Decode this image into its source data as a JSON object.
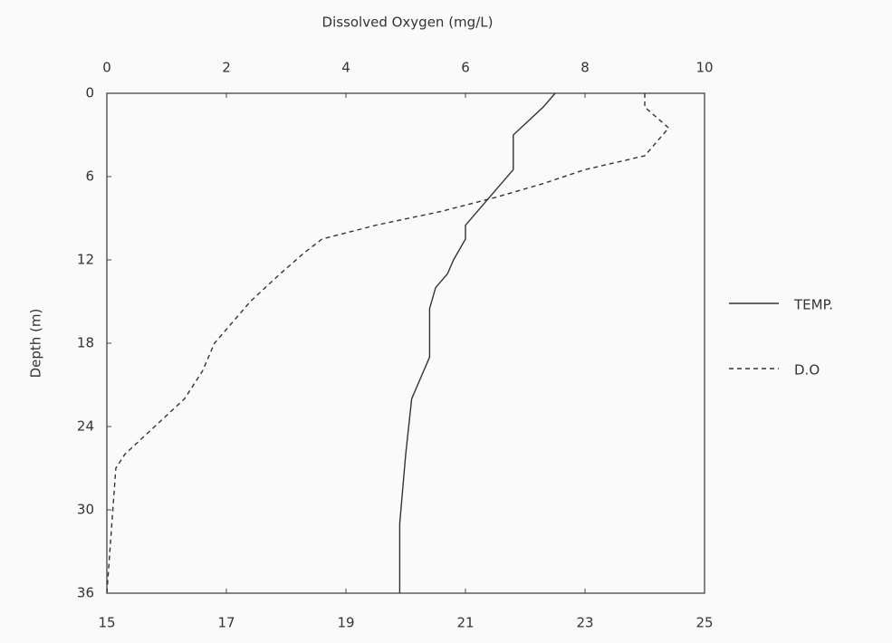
{
  "chart_data": {
    "type": "line",
    "x2_label": "Dissolved Oxygen (mg/L)",
    "y_label": "Depth (m)",
    "xlim": [
      15,
      25
    ],
    "xticks": [
      15,
      17,
      19,
      21,
      23,
      25
    ],
    "x2lim": [
      0,
      10
    ],
    "x2ticks": [
      0,
      2,
      4,
      6,
      8,
      10
    ],
    "ylim": [
      0,
      36
    ],
    "yticks": [
      0,
      6,
      12,
      18,
      24,
      30,
      36
    ],
    "y_inverted": true,
    "legend": "right",
    "series": [
      {
        "name": "TEMP.",
        "color": "#333333",
        "style": "solid",
        "x": [
          22.5,
          22.3,
          21.8,
          21.8,
          21.5,
          21.0,
          21.0,
          20.8,
          20.7,
          20.5,
          20.4,
          20.4,
          20.2,
          20.1,
          20.0,
          19.9,
          19.9
        ],
        "y": [
          0,
          1,
          3,
          5.5,
          7,
          9.5,
          10.5,
          12,
          13,
          14,
          15.5,
          19,
          21,
          22,
          26,
          31,
          36
        ]
      },
      {
        "name": "D.O",
        "color": "#333333",
        "style": "dashed",
        "axis": "x2",
        "x": [
          9.0,
          9.0,
          9.4,
          9.0,
          8.0,
          7.3,
          6.5,
          5.6,
          4.5,
          3.6,
          3.3,
          2.9,
          2.4,
          2.0,
          1.8,
          1.6,
          1.3,
          0.8,
          0.3,
          0.15,
          0.1,
          0.0
        ],
        "y": [
          0,
          1,
          2.5,
          4.5,
          5.5,
          6.5,
          7.5,
          8.5,
          9.5,
          10.5,
          11.5,
          13,
          15,
          17,
          18,
          20,
          22,
          24,
          26,
          27,
          30,
          36
        ]
      }
    ]
  }
}
